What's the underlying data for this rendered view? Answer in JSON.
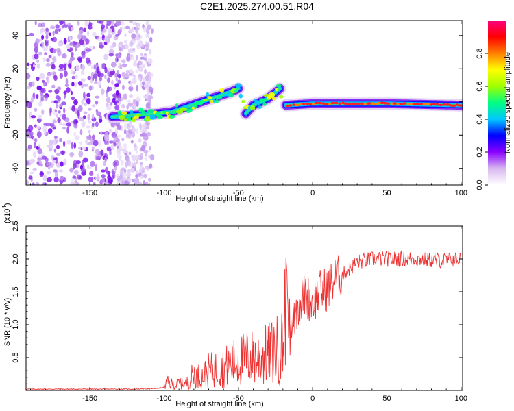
{
  "figure_title": "C2E1.2025.274.00.51.R04",
  "chart_data": [
    {
      "type": "heatmap",
      "name": "spectrogram",
      "xlabel": "Height of straight line (km)",
      "ylabel": "Frequency (Hz)",
      "xlim": [
        -193,
        101
      ],
      "ylim": [
        -50,
        49
      ],
      "xticks": [
        -150,
        -100,
        -50,
        0,
        50,
        100
      ],
      "yticks": [
        -40,
        -20,
        0,
        20,
        40
      ],
      "colorbar": {
        "label": "Normalized spectral amplitude",
        "range": [
          0,
          1
        ],
        "ticks": [
          0.0,
          0.2,
          0.4,
          0.6,
          0.8
        ],
        "tick_labels": [
          "0.0",
          "0.2",
          "0.4",
          "0.6",
          "0.8"
        ],
        "colors": [
          "#ffffff",
          "#d8b8f0",
          "#8a00ff",
          "#0000ff",
          "#00c8ff",
          "#00ff80",
          "#a0ff00",
          "#ffff00",
          "#ff8000",
          "#ff0000",
          "#ff0080"
        ]
      },
      "noise_region": {
        "x": [
          -193,
          -108
        ],
        "y": [
          -50,
          49
        ],
        "amplitude": [
          0.02,
          0.2
        ]
      },
      "signal_track": [
        {
          "x": -135,
          "y": -9
        },
        {
          "x": -120,
          "y": -8
        },
        {
          "x": -105,
          "y": -7
        },
        {
          "x": -95,
          "y": -6
        },
        {
          "x": -85,
          "y": -3
        },
        {
          "x": -75,
          "y": 0
        },
        {
          "x": -65,
          "y": 3
        },
        {
          "x": -55,
          "y": 6
        },
        {
          "x": -50,
          "y": 8
        },
        {
          "x": -45,
          "y": -7
        },
        {
          "x": -40,
          "y": -2
        },
        {
          "x": -30,
          "y": 2
        },
        {
          "x": -22,
          "y": 8
        },
        {
          "x": -18,
          "y": -2
        },
        {
          "x": 0,
          "y": -1
        },
        {
          "x": 50,
          "y": -1
        },
        {
          "x": 100,
          "y": -2
        }
      ]
    },
    {
      "type": "line",
      "name": "snr",
      "xlabel": "Height of straight line (km)",
      "ylabel": "SNR (10 * v/v)",
      "y_multiplier_label": "(x10",
      "y_multiplier_exponent": "4",
      "y_multiplier_suffix": ")",
      "xlim": [
        -193,
        101
      ],
      "ylim": [
        0,
        2.5
      ],
      "xticks": [
        -150,
        -100,
        -50,
        0,
        50,
        100
      ],
      "yticks": [
        0.5,
        1.0,
        1.5,
        2.0,
        2.5
      ],
      "ytick_labels": [
        "0.5",
        "1.0",
        "1.5",
        "2.0",
        "2.5"
      ],
      "color": "#ee3333",
      "series": [
        {
          "name": "SNR",
          "x": [
            -193,
            -150,
            -120,
            -105,
            -100,
            -98,
            -92,
            -90,
            -85,
            -80,
            -75,
            -70,
            -65,
            -60,
            -55,
            -50,
            -45,
            -40,
            -35,
            -30,
            -25,
            -20,
            -18,
            -15,
            -12,
            -10,
            -5,
            0,
            5,
            10,
            15,
            20,
            25,
            30,
            40,
            50,
            60,
            70,
            80,
            90,
            100
          ],
          "y": [
            0.02,
            0.02,
            0.02,
            0.03,
            0.05,
            0.12,
            0.08,
            0.12,
            0.1,
            0.25,
            0.2,
            0.3,
            0.32,
            0.35,
            0.4,
            0.45,
            0.48,
            0.5,
            0.5,
            0.55,
            0.6,
            0.68,
            0.75,
            1.0,
            1.2,
            1.3,
            1.45,
            1.35,
            1.5,
            1.55,
            1.7,
            1.75,
            1.85,
            1.95,
            2.0,
            2.0,
            2.0,
            2.0,
            1.98,
            1.98,
            2.0
          ]
        }
      ]
    }
  ]
}
